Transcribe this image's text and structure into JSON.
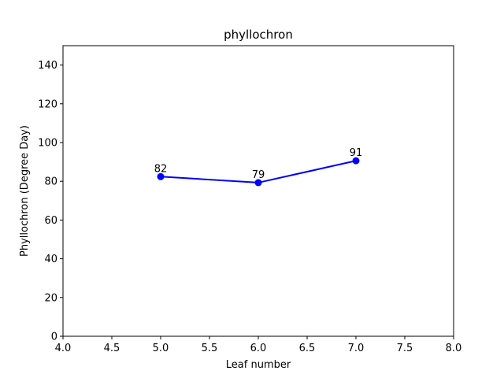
{
  "chart_data": {
    "type": "line",
    "title": "phyllochron",
    "xlabel": "Leaf number",
    "ylabel": "Phyllochron (Degree Day)",
    "xlim": [
      4.0,
      8.0
    ],
    "ylim": [
      0,
      150
    ],
    "xticks": [
      4.0,
      4.5,
      5.0,
      5.5,
      6.0,
      6.5,
      7.0,
      7.5,
      8.0
    ],
    "xtick_labels": [
      "4.0",
      "4.5",
      "5.0",
      "5.5",
      "6.0",
      "6.5",
      "7.0",
      "7.5",
      "8.0"
    ],
    "yticks": [
      0,
      20,
      40,
      60,
      80,
      100,
      120,
      140
    ],
    "ytick_labels": [
      "0",
      "20",
      "40",
      "60",
      "80",
      "100",
      "120",
      "140"
    ],
    "grid": false,
    "series": [
      {
        "color": "#0000ff",
        "marker": "circle",
        "x": [
          5.0,
          6.0,
          7.0
        ],
        "y": [
          82.4,
          79.3,
          90.6
        ],
        "labels": [
          "82",
          "79",
          "91"
        ]
      }
    ]
  }
}
